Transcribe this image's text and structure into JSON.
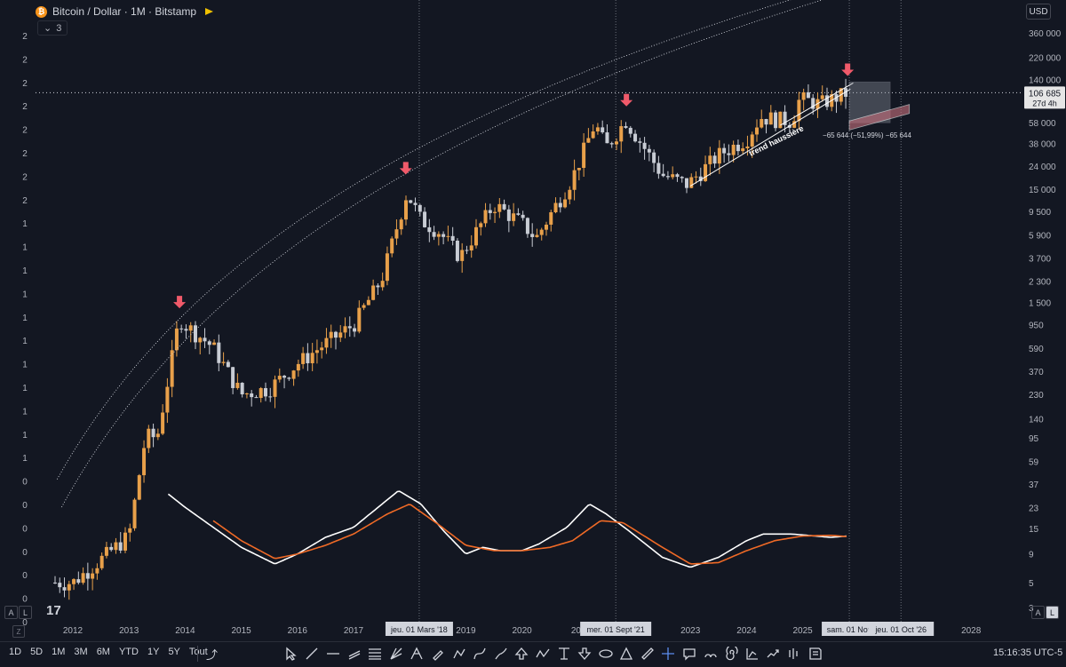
{
  "header": {
    "symbol_title": "Bitcoin / Dollar · 1M · Bitstamp",
    "collapse_count": "3",
    "currency": "USD"
  },
  "colors": {
    "background": "#131722",
    "up_candle": "#e8a04a",
    "down_candle": "#c8ccd4",
    "macd_line": "#ffffff",
    "signal_line": "#f06a26",
    "arrow": "#f05a6a",
    "grid_line": "#b0b4be"
  },
  "left_axis_labels": [
    "2",
    "2",
    "2",
    "2",
    "2",
    "2",
    "2",
    "2",
    "1",
    "1",
    "1",
    "1",
    "1",
    "1",
    "1",
    "1",
    "1",
    "1",
    "1",
    "0",
    "0",
    "0",
    "0",
    "0",
    "0",
    "0",
    "0"
  ],
  "chart_data": [
    {
      "type": "candlestick",
      "title": "Bitcoin / Dollar · 1M · Bitstamp",
      "x_scale": "time (yearly ticks)",
      "y_scale": "log",
      "x_ticks": [
        "2012",
        "2013",
        "2014",
        "2015",
        "2016",
        "2017",
        "2018",
        "2019",
        "2020",
        "2021",
        "2023",
        "2024",
        "2025",
        "2028"
      ],
      "y_ticks": [
        "360 000",
        "220 000",
        "140 000",
        "58 000",
        "38 000",
        "24 000",
        "15 000",
        "9 500",
        "5 900",
        "3 700",
        "2 300",
        "1 500",
        "950",
        "590",
        "370",
        "230",
        "140",
        "95",
        "59",
        "37",
        "23",
        "15",
        "9",
        "5",
        "3"
      ],
      "last_price": "106 685",
      "countdown": "27d 4h",
      "series": [
        {
          "name": "close_approx",
          "x": [
            2011.6,
            2012.0,
            2012.5,
            2013.0,
            2013.3,
            2013.5,
            2013.9,
            2014.0,
            2014.5,
            2015.0,
            2015.5,
            2016.0,
            2016.5,
            2017.0,
            2017.5,
            2017.95,
            2018.2,
            2018.5,
            2018.9,
            2019.5,
            2020.0,
            2020.25,
            2020.9,
            2021.3,
            2021.5,
            2021.85,
            2022.5,
            2022.95,
            2023.5,
            2024.0,
            2024.25,
            2024.8,
            2024.95,
            2025.3,
            2025.8
          ],
          "y": [
            5,
            5,
            8,
            13,
            100,
            95,
            1100,
            950,
            600,
            230,
            260,
            430,
            650,
            950,
            2400,
            14000,
            8000,
            6500,
            3800,
            11000,
            7500,
            5500,
            19000,
            57000,
            35000,
            61000,
            20000,
            16500,
            30000,
            42000,
            65000,
            60000,
            95000,
            85000,
            106685
          ]
        }
      ],
      "annotations": {
        "trend_label": "trend haussière",
        "measure_label": "−65 644 (−51,99%) −65 644",
        "peak_arrows_dates": [
          "2013-11",
          "2017-12",
          "2021-11",
          "2025-10"
        ],
        "crosshair_x_labels": [
          "jeu. 01 Mars '18",
          "mer. 01 Sept '21",
          "sam. 01 Nov",
          "jeu. 01 Oct '26"
        ]
      }
    },
    {
      "type": "line",
      "title": "",
      "series": [
        {
          "name": "",
          "x": [
            2013.7,
            2014.0,
            2014.5,
            2015.0,
            2015.6,
            2016.0,
            2016.5,
            2017.0,
            2017.8,
            2018.2,
            2018.6,
            2019.0,
            2019.3,
            2019.6,
            2020.0,
            2020.3,
            2020.8,
            2021.2,
            2021.5,
            2021.9,
            2022.5,
            2023.0,
            2023.5,
            2024.0,
            2024.3,
            2024.8,
            2025.5,
            2025.8
          ],
          "y": [
            0.25,
            0.05,
            -0.25,
            -0.55,
            -0.8,
            -0.65,
            -0.4,
            -0.25,
            0.3,
            0.1,
            -0.3,
            -0.65,
            -0.55,
            -0.6,
            -0.6,
            -0.5,
            -0.25,
            0.1,
            -0.05,
            -0.3,
            -0.7,
            -0.85,
            -0.7,
            -0.45,
            -0.35,
            -0.35,
            -0.4,
            -0.38
          ]
        },
        {
          "name": "",
          "x": [
            2014.5,
            2015.0,
            2015.6,
            2016.0,
            2016.5,
            2017.0,
            2017.6,
            2018.0,
            2018.5,
            2019.0,
            2019.5,
            2020.0,
            2020.5,
            2020.9,
            2021.4,
            2021.8,
            2022.5,
            2023.0,
            2023.5,
            2024.0,
            2024.5,
            2025.0,
            2025.5,
            2025.8
          ],
          "y": [
            -0.15,
            -0.45,
            -0.72,
            -0.65,
            -0.52,
            -0.35,
            -0.05,
            0.1,
            -0.2,
            -0.52,
            -0.6,
            -0.6,
            -0.55,
            -0.45,
            -0.15,
            -0.18,
            -0.55,
            -0.8,
            -0.78,
            -0.6,
            -0.45,
            -0.38,
            -0.37,
            -0.39
          ]
        }
      ]
    }
  ],
  "bottom_controls": {
    "left_scale_auto": "A",
    "left_scale_log": "L",
    "right_scale_auto": "A",
    "right_scale_log": "L",
    "logo": "17",
    "zoom_btn": "Z"
  },
  "toolbar": {
    "ranges": [
      "1D",
      "5D",
      "1M",
      "3M",
      "6M",
      "YTD",
      "1Y",
      "5Y",
      "Tout"
    ],
    "time": "15:16:35 UTC-5",
    "tools": [
      "cursor-icon",
      "trendline-icon",
      "horizontal-line-icon",
      "parallel-channel-icon",
      "fib-icon",
      "gann-icon",
      "pitchfork-icon",
      "pen-icon",
      "polyline-icon",
      "path-icon",
      "brush-icon",
      "arrow-up-icon",
      "zigzag-icon",
      "long-position-icon",
      "arrow-down-icon",
      "ellipse-icon",
      "triangle-icon",
      "ruler-icon",
      "crosshair-icon",
      "callout-icon",
      "cycle-icon",
      "spiral-icon",
      "projection-icon",
      "forecast-icon",
      "bars-pattern-icon",
      "note-icon"
    ]
  }
}
